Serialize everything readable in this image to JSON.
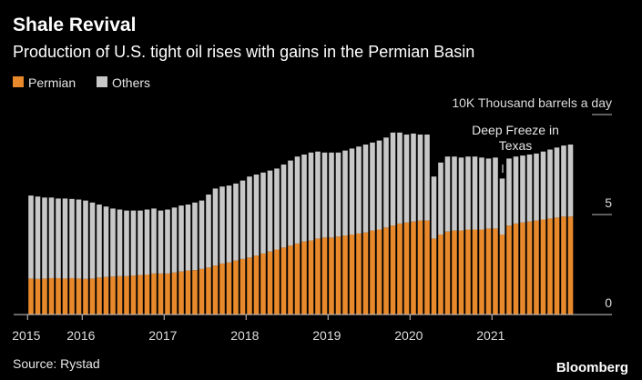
{
  "chart_data": {
    "type": "stacked_bar",
    "title": "Shale Revival",
    "subtitle": "Production of U.S. tight oil rises with gains in the Permian Basin",
    "y_label": "Thousand barrels a day",
    "annotation": [
      "Deep Freeze in",
      "Texas"
    ],
    "source": "Source: Rystad",
    "brand": "Bloomberg",
    "categories": [
      "2015",
      null,
      null,
      null,
      null,
      null,
      null,
      null,
      "2016",
      null,
      null,
      null,
      null,
      null,
      null,
      null,
      null,
      null,
      null,
      null,
      "2017",
      null,
      null,
      null,
      null,
      null,
      null,
      null,
      null,
      null,
      null,
      null,
      "2018",
      null,
      null,
      null,
      null,
      null,
      null,
      null,
      null,
      null,
      null,
      null,
      "2019",
      null,
      null,
      null,
      null,
      null,
      null,
      null,
      null,
      null,
      null,
      null,
      "2020",
      null,
      null,
      null,
      null,
      null,
      null,
      null,
      null,
      null,
      null,
      null,
      "2021",
      null,
      null,
      null,
      null,
      null,
      null,
      null,
      null,
      null,
      null,
      null
    ],
    "series": [
      {
        "name": "Permian",
        "color": "#e8892b",
        "values": [
          1.8,
          1.78,
          1.8,
          1.82,
          1.82,
          1.8,
          1.82,
          1.8,
          1.78,
          1.8,
          1.85,
          1.88,
          1.9,
          1.92,
          1.92,
          1.95,
          1.98,
          2.0,
          2.05,
          2.05,
          2.05,
          2.1,
          2.15,
          2.2,
          2.22,
          2.28,
          2.35,
          2.45,
          2.55,
          2.6,
          2.7,
          2.78,
          2.85,
          2.95,
          3.05,
          3.15,
          3.25,
          3.35,
          3.45,
          3.55,
          3.65,
          3.7,
          3.8,
          3.85,
          3.85,
          3.9,
          3.95,
          4.0,
          4.05,
          4.1,
          4.2,
          4.25,
          4.35,
          4.45,
          4.55,
          4.6,
          4.65,
          4.7,
          4.7,
          3.8,
          4.0,
          4.15,
          4.2,
          4.2,
          4.25,
          4.25,
          4.25,
          4.3,
          4.3,
          4.0,
          4.45,
          4.55,
          4.6,
          4.65,
          4.7,
          4.75,
          4.8,
          4.85,
          4.9,
          4.9
        ]
      },
      {
        "name": "Others",
        "color": "#c8c8c8",
        "values": [
          4.15,
          4.12,
          4.05,
          4.03,
          3.98,
          4.0,
          3.96,
          3.95,
          3.92,
          3.8,
          3.65,
          3.52,
          3.4,
          3.33,
          3.28,
          3.25,
          3.22,
          3.25,
          3.25,
          3.15,
          3.2,
          3.25,
          3.3,
          3.3,
          3.38,
          3.42,
          3.65,
          3.85,
          3.85,
          3.85,
          3.85,
          3.92,
          4.05,
          4.05,
          4.05,
          4.05,
          4.05,
          4.15,
          4.25,
          4.35,
          4.35,
          4.4,
          4.35,
          4.25,
          4.25,
          4.2,
          4.25,
          4.3,
          4.35,
          4.4,
          4.4,
          4.45,
          4.5,
          4.65,
          4.55,
          4.4,
          4.4,
          4.3,
          4.3,
          3.1,
          3.6,
          3.75,
          3.7,
          3.65,
          3.65,
          3.65,
          3.6,
          3.5,
          3.55,
          2.8,
          3.35,
          3.35,
          3.35,
          3.35,
          3.35,
          3.4,
          3.45,
          3.5,
          3.55,
          3.6
        ]
      }
    ],
    "ylim": [
      0,
      10.5
    ],
    "yticks": [
      0,
      5,
      {
        "value": 10,
        "label": "10K"
      }
    ]
  }
}
